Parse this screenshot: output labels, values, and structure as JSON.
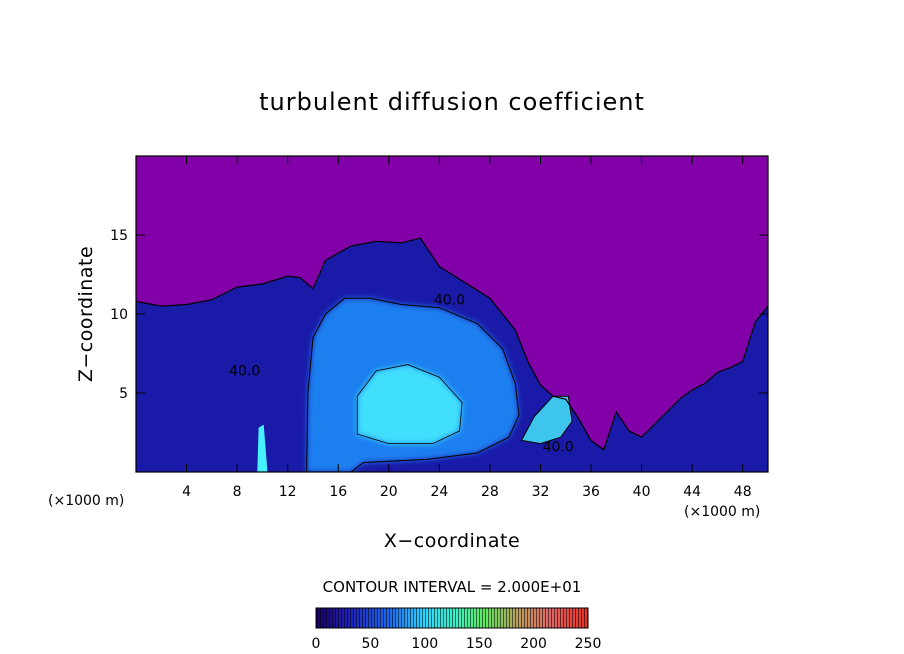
{
  "chart_data": {
    "type": "heatmap",
    "title": "turbulent diffusion coefficient",
    "xlabel": "X−coordinate",
    "ylabel": "Z−coordinate",
    "x_unit": "(×1000 m)",
    "z_unit": "(×1000 m)",
    "xlim": [
      0,
      50
    ],
    "ylim": [
      0,
      20
    ],
    "x_ticks": [
      4,
      8,
      12,
      16,
      20,
      24,
      28,
      32,
      36,
      40,
      44,
      48
    ],
    "y_ticks": [
      5,
      10,
      15
    ],
    "contour_interval_text": "CONTOUR INTERVAL = 2.000E+01",
    "contour_labels": [
      {
        "text": "40.0",
        "x": 24.8,
        "z": 10.6
      },
      {
        "text": "40.0",
        "x": 8.6,
        "z": 6.1
      },
      {
        "text": "40.0",
        "x": 33.4,
        "z": 1.3
      }
    ],
    "colorbar": {
      "min": 0,
      "max": 250,
      "tick_values": [
        0,
        50,
        100,
        150,
        200,
        250
      ],
      "tick_labels": [
        "0",
        "50",
        "100",
        "150",
        "200",
        "250"
      ]
    },
    "colors": {
      "background_field": "#8200a8",
      "low": "#1a1aa8",
      "mid": "#1e7ff0",
      "high": "#46f0ff"
    },
    "field_shape": {
      "boundary_layer_top": [
        [
          0,
          10.8
        ],
        [
          2,
          10.5
        ],
        [
          4,
          10.6
        ],
        [
          6,
          10.9
        ],
        [
          8,
          11.7
        ],
        [
          10,
          11.9
        ],
        [
          12,
          12.4
        ],
        [
          13,
          12.3
        ],
        [
          14,
          11.6
        ],
        [
          15,
          13.4
        ],
        [
          17,
          14.3
        ],
        [
          19,
          14.6
        ],
        [
          21,
          14.5
        ],
        [
          22.5,
          14.8
        ],
        [
          24,
          13.0
        ],
        [
          26,
          12.0
        ],
        [
          28,
          11.0
        ],
        [
          30,
          9.0
        ],
        [
          31,
          7.0
        ],
        [
          32,
          5.5
        ],
        [
          33,
          4.8
        ],
        [
          34,
          4.6
        ],
        [
          35,
          3.4
        ],
        [
          36,
          2.0
        ],
        [
          37,
          1.4
        ],
        [
          38,
          3.8
        ],
        [
          39,
          2.6
        ],
        [
          40,
          2.2
        ],
        [
          41,
          3.0
        ],
        [
          42,
          3.8
        ],
        [
          43,
          4.6
        ],
        [
          44,
          5.2
        ],
        [
          45,
          5.6
        ],
        [
          46,
          6.3
        ],
        [
          47,
          6.6
        ],
        [
          48,
          7.0
        ],
        [
          49,
          9.5
        ],
        [
          50,
          10.5
        ]
      ],
      "updraft_plume": [
        [
          13.5,
          0
        ],
        [
          13.6,
          5.0
        ],
        [
          14.0,
          8.5
        ],
        [
          15.0,
          10.0
        ],
        [
          16.5,
          11.0
        ],
        [
          18.5,
          11.0
        ],
        [
          21,
          10.6
        ],
        [
          24,
          10.4
        ],
        [
          27,
          9.4
        ],
        [
          29.0,
          7.8
        ],
        [
          30.0,
          5.6
        ],
        [
          30.3,
          3.6
        ],
        [
          29.5,
          2.2
        ],
        [
          27,
          1.2
        ],
        [
          23,
          0.8
        ],
        [
          18,
          0.6
        ],
        [
          17,
          0
        ]
      ],
      "core": [
        [
          17.5,
          2.4
        ],
        [
          17.5,
          4.8
        ],
        [
          19.0,
          6.4
        ],
        [
          21.5,
          6.8
        ],
        [
          24.0,
          6.0
        ],
        [
          25.8,
          4.4
        ],
        [
          25.6,
          2.6
        ],
        [
          23.5,
          1.8
        ],
        [
          20.0,
          1.8
        ]
      ],
      "gust_front_patch": [
        [
          30.5,
          2.0
        ],
        [
          31.5,
          3.5
        ],
        [
          33.0,
          4.8
        ],
        [
          34.2,
          4.8
        ],
        [
          34.5,
          3.2
        ],
        [
          33.6,
          2.2
        ],
        [
          32.0,
          1.8
        ]
      ],
      "thin_stem": [
        [
          9.6,
          0
        ],
        [
          9.7,
          2.8
        ],
        [
          10.1,
          3.0
        ],
        [
          10.4,
          0
        ]
      ]
    }
  }
}
